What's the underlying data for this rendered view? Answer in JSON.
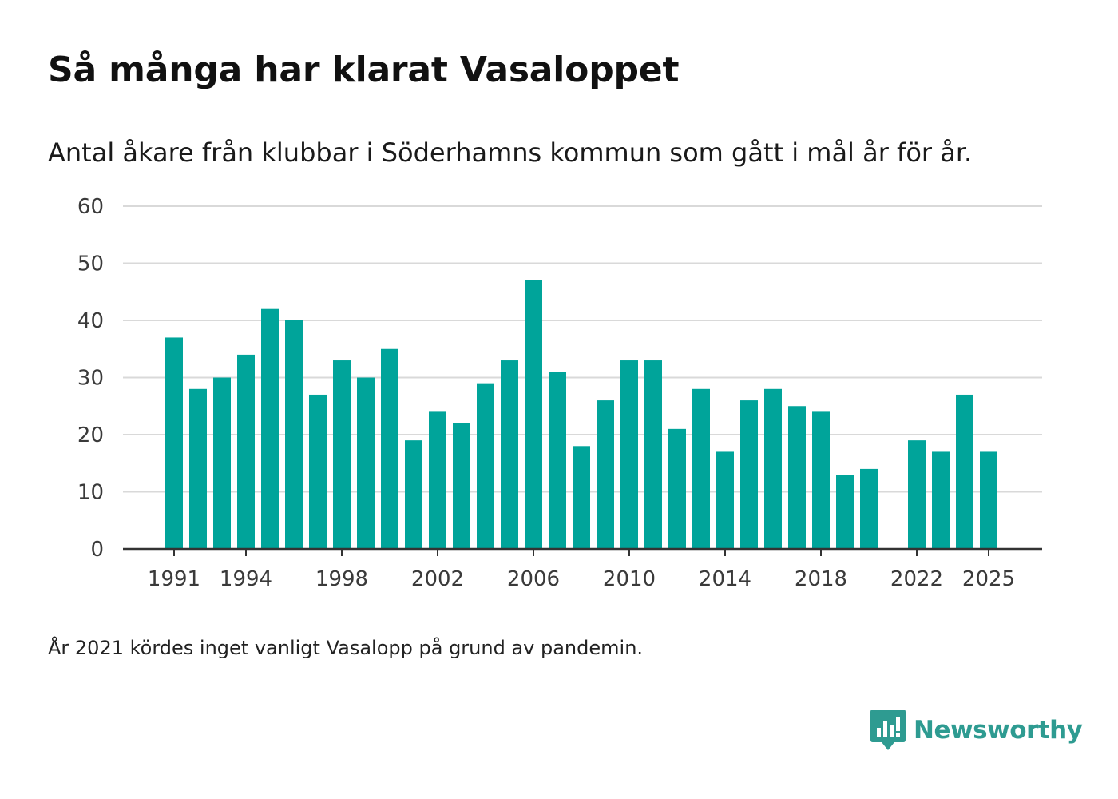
{
  "title": "Så många har klarat Vasaloppet",
  "subtitle": "Antal åkare från klubbar i Söderhamns kommun som gått i mål år för år.",
  "footnote": "År 2021 kördes inget vanligt Vasalopp på grund av pandemin.",
  "brand": {
    "name": "Newsworthy",
    "icon": "newsworthy-logo-icon"
  },
  "colors": {
    "bar": "#00a49a",
    "brand": "#2e9b91",
    "grid": "#d9d9d9",
    "axis": "#333333"
  },
  "chart_data": {
    "type": "bar",
    "title": "Så många har klarat Vasaloppet",
    "subtitle": "Antal åkare från klubbar i Söderhamns kommun som gått i mål år för år.",
    "xlabel": "",
    "ylabel": "",
    "ylim": [
      0,
      60
    ],
    "yticks": [
      0,
      10,
      20,
      30,
      40,
      50,
      60
    ],
    "grid": true,
    "x_tick_labels": [
      "1991",
      "1994",
      "1998",
      "2002",
      "2006",
      "2010",
      "2014",
      "2018",
      "2022",
      "2025"
    ],
    "categories": [
      1991,
      1992,
      1993,
      1994,
      1995,
      1996,
      1997,
      1998,
      1999,
      2000,
      2001,
      2002,
      2003,
      2004,
      2005,
      2006,
      2007,
      2008,
      2009,
      2010,
      2011,
      2012,
      2013,
      2014,
      2015,
      2016,
      2017,
      2018,
      2019,
      2020,
      2021,
      2022,
      2023,
      2024,
      2025
    ],
    "values": [
      37,
      28,
      30,
      34,
      42,
      40,
      27,
      33,
      30,
      35,
      19,
      24,
      22,
      29,
      33,
      47,
      31,
      18,
      26,
      33,
      33,
      21,
      28,
      17,
      26,
      28,
      25,
      24,
      13,
      14,
      null,
      19,
      17,
      27,
      17
    ]
  }
}
